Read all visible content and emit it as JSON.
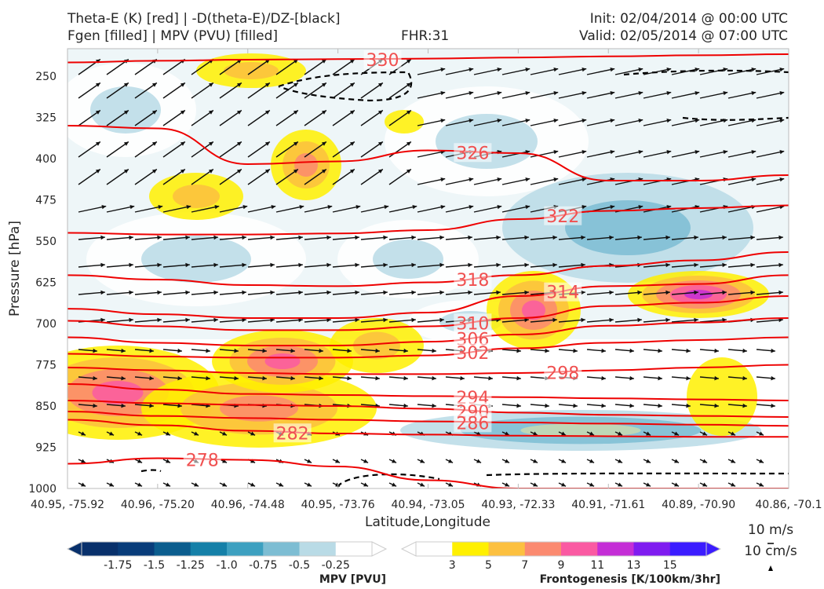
{
  "header": {
    "line1_left": "Theta-E (K) [red] | -D(theta-E)/DZ-[black]",
    "line2_left": "Fgen [filled] | MPV (PVU) [filled]",
    "fhr": "FHR:31",
    "init": "Init: 02/04/2014 @ 00:00 UTC",
    "valid": "Valid: 02/05/2014 @ 07:00 UTC"
  },
  "chart_data": {
    "type": "cross-section",
    "xlabel": "Latitude,Longitude",
    "ylabel": "Pressure [hPa]",
    "x_ticks": [
      "40.95, -75.92",
      "40.96, -75.20",
      "40.96, -74.48",
      "40.95, -73.76",
      "40.94, -73.05",
      "40.93, -72.33",
      "40.91, -71.61",
      "40.89, -70.90",
      "40.86, -70.1"
    ],
    "y_ticks": [
      250,
      325,
      400,
      475,
      550,
      625,
      700,
      775,
      850,
      925,
      1000
    ],
    "ylim": [
      1000,
      200
    ],
    "theta_e_contours": [
      {
        "label": "330",
        "level": 330,
        "y_at": [
          225,
          222,
          220,
          219,
          218,
          216,
          214,
          212,
          210
        ]
      },
      {
        "label": "326",
        "level": 326,
        "y_at": [
          340,
          345,
          410,
          405,
          385,
          390,
          440,
          440,
          430
        ]
      },
      {
        "label": "322",
        "level": 322,
        "y_at": [
          535,
          538,
          538,
          536,
          530,
          510,
          495,
          490,
          485
        ]
      },
      {
        "label": "318",
        "level": 318,
        "y_at": [
          612,
          620,
          630,
          632,
          625,
          612,
          595,
          585,
          570
        ]
      },
      {
        "label": "314",
        "level": 314,
        "y_at": [
          673,
          683,
          690,
          690,
          680,
          650,
          632,
          628,
          612
        ]
      },
      {
        "label": "310",
        "level": 310,
        "y_at": [
          695,
          705,
          712,
          712,
          705,
          690,
          668,
          662,
          650
        ]
      },
      {
        "label": "306",
        "level": 306,
        "y_at": [
          725,
          735,
          740,
          740,
          733,
          720,
          704,
          698,
          690
        ]
      },
      {
        "label": "302",
        "level": 302,
        "y_at": [
          755,
          760,
          762,
          762,
          758,
          745,
          735,
          730,
          725
        ]
      },
      {
        "label": "298",
        "level": 298,
        "y_at": [
          780,
          785,
          790,
          792,
          792,
          790,
          785,
          780,
          775
        ]
      },
      {
        "label": "294",
        "level": 294,
        "y_at": [
          810,
          820,
          828,
          830,
          832,
          834,
          836,
          838,
          840
        ]
      },
      {
        "label": "290",
        "level": 290,
        "y_at": [
          840,
          845,
          848,
          850,
          855,
          862,
          866,
          868,
          870
        ]
      },
      {
        "label": "286",
        "level": 286,
        "y_at": [
          860,
          868,
          872,
          875,
          878,
          880,
          882,
          884,
          886
        ]
      },
      {
        "label": "282",
        "level": 282,
        "y_at": [
          875,
          885,
          895,
          900,
          902,
          904,
          905,
          906,
          906
        ]
      },
      {
        "label": "278",
        "level": 278,
        "y_at": [
          955,
          945,
          948,
          960,
          985,
          1000,
          1000,
          1000,
          1000
        ]
      }
    ],
    "mpv_colorbar": {
      "title": "MPV [PVU]",
      "ticks": [
        "-1.75",
        "-1.5",
        "-1.25",
        "-1.0",
        "-0.75",
        "-0.5",
        "-0.25"
      ],
      "colors": [
        "#08306b",
        "#083c7a",
        "#0b5d8e",
        "#1580a8",
        "#3da0c0",
        "#7dbdd3",
        "#b9dbe6",
        "#ffffff"
      ]
    },
    "fgen_colorbar": {
      "title": "Frontogenesis [K/100km/3hr]",
      "ticks": [
        "3",
        "5",
        "7",
        "9",
        "11",
        "13",
        "15"
      ],
      "colors": [
        "#ffffff",
        "#fff000",
        "#fcc040",
        "#fb8a70",
        "#fa5aa2",
        "#c42ed6",
        "#7f1cf0",
        "#3b1cff"
      ]
    },
    "wind_key": {
      "label_top": "10 m/s",
      "label_bottom": "10 cm/s"
    }
  }
}
